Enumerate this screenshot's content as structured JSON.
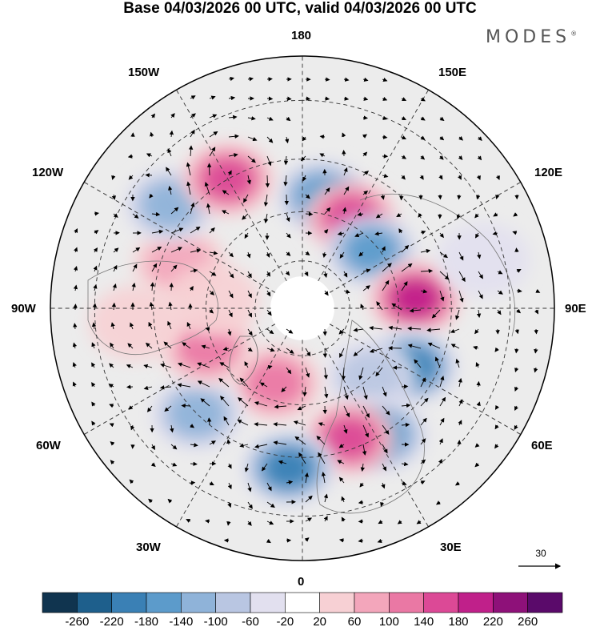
{
  "title": "Base 04/03/2026 00 UTC, valid 04/03/2026 00 UTC",
  "brand": "MODES",
  "brand_mark": "®",
  "longitude_labels": {
    "top": "180",
    "bottom": "0",
    "left": "90W",
    "right": "90E",
    "upper_left_1": "150W",
    "upper_left_2": "120W",
    "lower_left_1": "60W",
    "lower_left_2": "30W",
    "upper_right_1": "150E",
    "upper_right_2": "120E",
    "lower_right_1": "60E",
    "lower_right_2": "30E"
  },
  "reference_vector": {
    "value": "30"
  },
  "colorbar": {
    "colors": [
      "#10344f",
      "#1e5f8c",
      "#3a80b5",
      "#5c9bcb",
      "#8fb3d9",
      "#b9c6e2",
      "#e2e0ef",
      "#ffffff",
      "#f7d0d4",
      "#f3a6bb",
      "#ea78a4",
      "#dc4996",
      "#c0208a",
      "#8e1179",
      "#5a0a6a"
    ],
    "ticks": [
      "-260",
      "-220",
      "-180",
      "-140",
      "-100",
      "-60",
      "-20",
      "20",
      "60",
      "100",
      "140",
      "180",
      "220",
      "260"
    ]
  },
  "anomaly_cells": [
    {
      "lon": 170,
      "lat": 55,
      "value": -150
    },
    {
      "lon": 152,
      "lat": 58,
      "value": 175
    },
    {
      "lon": 130,
      "lat": 62,
      "value": -170
    },
    {
      "lon": 95,
      "lat": 55,
      "value": 190
    },
    {
      "lon": 62,
      "lat": 52,
      "value": -190
    },
    {
      "lon": 45,
      "lat": 60,
      "value": -90
    },
    {
      "lon": 32,
      "lat": 45,
      "value": -150
    },
    {
      "lon": 20,
      "lat": 48,
      "value": 150
    },
    {
      "lon": -5,
      "lat": 42,
      "value": -190
    },
    {
      "lon": -20,
      "lat": 65,
      "value": 140
    },
    {
      "lon": -45,
      "lat": 45,
      "value": -140
    },
    {
      "lon": -68,
      "lat": 58,
      "value": 110
    },
    {
      "lon": -110,
      "lat": 50,
      "value": 100
    },
    {
      "lon": -128,
      "lat": 40,
      "value": -130
    },
    {
      "lon": -150,
      "lat": 45,
      "value": 160
    },
    {
      "lon": -95,
      "lat": 62,
      "value": 60
    },
    {
      "lon": 105,
      "lat": 35,
      "value": -60
    },
    {
      "lon": -85,
      "lat": 40,
      "value": 40
    }
  ]
}
